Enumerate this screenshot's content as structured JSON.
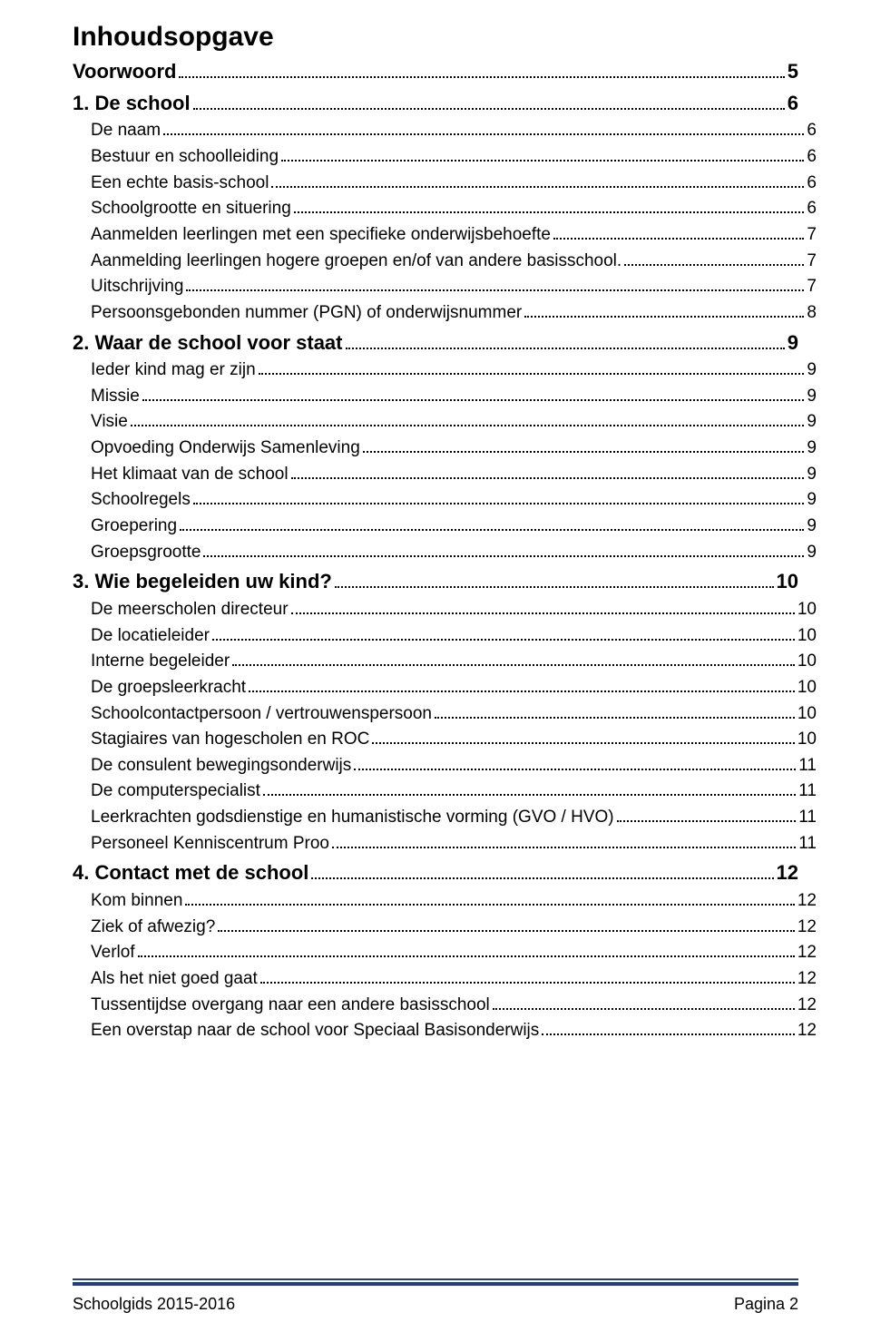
{
  "title": "Inhoudsopgave",
  "footer": {
    "left": "Schoolgids 2015-2016",
    "right": "Pagina 2"
  },
  "colors": {
    "rule": "#1f3a93",
    "text": "#000000",
    "background": "#ffffff"
  },
  "toc": [
    {
      "level": 1,
      "label": "Voorwoord",
      "page": "5"
    },
    {
      "level": 1,
      "label": "1. De school",
      "page": "6"
    },
    {
      "level": 2,
      "label": "De naam",
      "page": "6"
    },
    {
      "level": 2,
      "label": "Bestuur en schoolleiding",
      "page": "6"
    },
    {
      "level": 2,
      "label": "Een echte basis-school",
      "page": "6"
    },
    {
      "level": 2,
      "label": "Schoolgrootte en situering",
      "page": "6"
    },
    {
      "level": 2,
      "label": "Aanmelden leerlingen met een specifieke onderwijsbehoefte",
      "page": "7"
    },
    {
      "level": 2,
      "label": "Aanmelding leerlingen hogere groepen en/of van andere basisschool.",
      "page": "7"
    },
    {
      "level": 2,
      "label": "Uitschrijving",
      "page": "7"
    },
    {
      "level": 2,
      "label": "Persoonsgebonden nummer (PGN) of onderwijsnummer",
      "page": "8"
    },
    {
      "level": 1,
      "label": "2. Waar de school voor staat",
      "page": "9"
    },
    {
      "level": 2,
      "label": "Ieder kind mag er zijn",
      "page": "9"
    },
    {
      "level": 2,
      "label": "Missie",
      "page": "9"
    },
    {
      "level": 2,
      "label": "Visie",
      "page": "9"
    },
    {
      "level": 2,
      "label": "Opvoeding Onderwijs Samenleving",
      "page": "9"
    },
    {
      "level": 2,
      "label": "Het klimaat van de school",
      "page": "9"
    },
    {
      "level": 2,
      "label": "Schoolregels",
      "page": "9"
    },
    {
      "level": 2,
      "label": "Groepering",
      "page": "9"
    },
    {
      "level": 2,
      "label": "Groepsgrootte",
      "page": "9"
    },
    {
      "level": 1,
      "label": "3. Wie begeleiden uw kind?",
      "page": "10"
    },
    {
      "level": 2,
      "label": "De meerscholen directeur",
      "page": "10"
    },
    {
      "level": 2,
      "label": "De locatieleider",
      "page": "10"
    },
    {
      "level": 2,
      "label": "Interne begeleider",
      "page": "10"
    },
    {
      "level": 2,
      "label": "De groepsleerkracht",
      "page": "10"
    },
    {
      "level": 2,
      "label": "Schoolcontactpersoon / vertrouwenspersoon",
      "page": "10"
    },
    {
      "level": 2,
      "label": "Stagiaires van hogescholen en ROC",
      "page": "10"
    },
    {
      "level": 2,
      "label": "De consulent bewegingsonderwijs",
      "page": "11"
    },
    {
      "level": 2,
      "label": "De computerspecialist",
      "page": "11"
    },
    {
      "level": 2,
      "label": "Leerkrachten godsdienstige en humanistische vorming (GVO / HVO)",
      "page": "11"
    },
    {
      "level": 2,
      "label": "Personeel Kenniscentrum Proo",
      "page": "11"
    },
    {
      "level": 1,
      "label": "4. Contact met de school",
      "page": "12"
    },
    {
      "level": 2,
      "label": "Kom binnen",
      "page": "12"
    },
    {
      "level": 2,
      "label": "Ziek of afwezig?",
      "page": "12"
    },
    {
      "level": 2,
      "label": "Verlof",
      "page": "12"
    },
    {
      "level": 2,
      "label": "Als het niet goed gaat",
      "page": "12"
    },
    {
      "level": 2,
      "label": "Tussentijdse overgang naar een andere basisschool",
      "page": "12"
    },
    {
      "level": 2,
      "label": "Een overstap naar de school voor Speciaal Basisonderwijs",
      "page": "12"
    }
  ]
}
